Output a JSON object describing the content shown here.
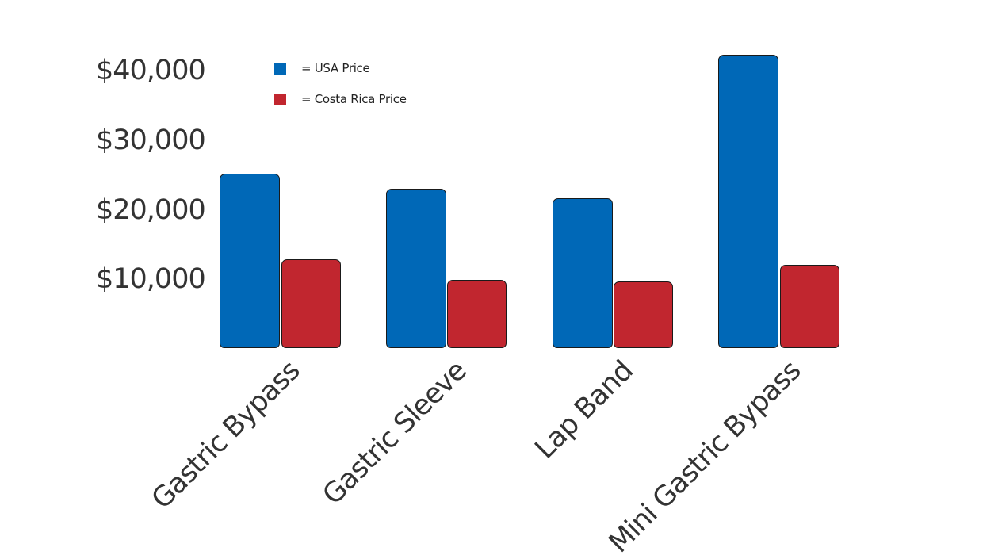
{
  "chart_data": {
    "type": "bar",
    "title": "",
    "xlabel": "",
    "ylabel": "",
    "categories": [
      "Gastric Bypass",
      "Gastric Sleeve",
      "Lap Band",
      "Mini Gastric Bypass"
    ],
    "series": [
      {
        "name": "USA Price",
        "color": "#0068b7",
        "values": [
          25000,
          22800,
          21500,
          42000
        ]
      },
      {
        "name": "Costa Rica Price",
        "color": "#c1262f",
        "values": [
          12700,
          9800,
          9500,
          11900
        ]
      }
    ],
    "yticks": [
      "$10,000",
      "$20,000",
      "$30,000",
      "$40,000"
    ],
    "ytick_values": [
      10000,
      20000,
      30000,
      40000
    ],
    "ylim": [
      0,
      42000
    ],
    "grid": false,
    "legend_position": "top-left",
    "legend": [
      {
        "label": "= USA Price",
        "color": "#0068b7"
      },
      {
        "label": "= Costa Rica Price",
        "color": "#c1262f"
      }
    ]
  }
}
